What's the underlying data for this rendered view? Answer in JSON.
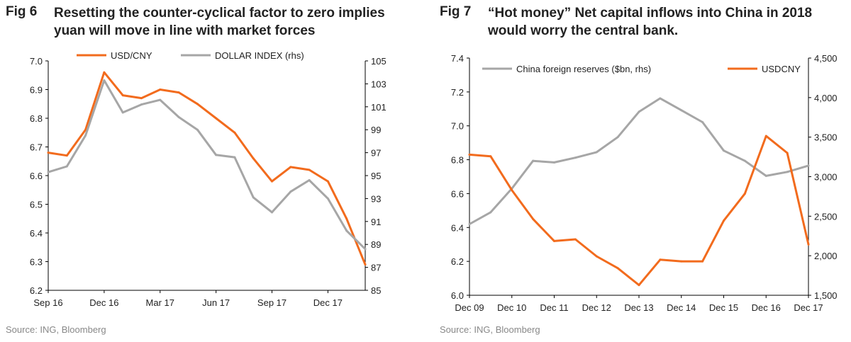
{
  "figures": [
    {
      "fig_label": "Fig 6",
      "title": "Resetting the counter-cyclical factor to zero implies yuan will move in line with market forces",
      "source": "Source: ING, Bloomberg"
    },
    {
      "fig_label": "Fig 7",
      "title": "“Hot money” Net capital inflows into China in 2018 would worry the central bank.",
      "source": "Source: ING, Bloomberg"
    }
  ],
  "colors": {
    "orange": "#f26b1d",
    "gray": "#a6a6a6",
    "axis": "#000000"
  },
  "chart_data": [
    {
      "type": "line",
      "title": "",
      "x": [
        "Sep 16",
        "Oct 16",
        "Nov 16",
        "Dec 16",
        "Jan 17",
        "Feb 17",
        "Mar 17",
        "Apr 17",
        "May 17",
        "Jun 17",
        "Jul 17",
        "Aug 17",
        "Sep 17",
        "Oct 17",
        "Nov 17",
        "Dec 17",
        "Jan 18",
        "Feb 18"
      ],
      "xticks": [
        "Sep 16",
        "Dec 16",
        "Mar 17",
        "Jun 17",
        "Sep 17",
        "Dec 17"
      ],
      "y_left": {
        "ylim": [
          6.2,
          7.0
        ],
        "ticks": [
          "6.2",
          "6.3",
          "6.4",
          "6.5",
          "6.6",
          "6.7",
          "6.8",
          "6.9",
          "7.0"
        ]
      },
      "y_right": {
        "ylim": [
          85,
          105
        ],
        "ticks": [
          "85",
          "87",
          "89",
          "91",
          "93",
          "95",
          "97",
          "99",
          "101",
          "103",
          "105"
        ]
      },
      "legend": {
        "placement": "top",
        "entries": [
          "USD/CNY",
          "DOLLAR INDEX (rhs)"
        ]
      },
      "series": [
        {
          "name": "USD/CNY",
          "axis": "left",
          "color": "#f26b1d",
          "values": [
            6.68,
            6.67,
            6.76,
            6.96,
            6.88,
            6.87,
            6.9,
            6.89,
            6.85,
            6.8,
            6.75,
            6.66,
            6.58,
            6.63,
            6.62,
            6.58,
            6.45,
            6.29
          ]
        },
        {
          "name": "DOLLAR INDEX (rhs)",
          "axis": "right",
          "color": "#a6a6a6",
          "values": [
            95.3,
            95.8,
            98.5,
            103.3,
            100.5,
            101.2,
            101.6,
            100.1,
            99.0,
            96.8,
            96.6,
            93.1,
            91.8,
            93.6,
            94.6,
            93.0,
            90.2,
            88.6
          ]
        }
      ],
      "grid": false
    },
    {
      "type": "line",
      "title": "",
      "x": [
        "Dec 09",
        "Jun 10",
        "Dec 10",
        "Jun 11",
        "Dec 11",
        "Jun 12",
        "Dec 12",
        "Jun 13",
        "Dec 13",
        "Jun 14",
        "Dec 14",
        "Jun 15",
        "Dec 15",
        "Jun 16",
        "Dec 16",
        "Jun 17",
        "Dec 17"
      ],
      "xticks": [
        "Dec 09",
        "Dec 10",
        "Dec 11",
        "Dec 12",
        "Dec 13",
        "Dec 14",
        "Dec 15",
        "Dec 16",
        "Dec 17"
      ],
      "y_left": {
        "ylim": [
          6.0,
          7.4
        ],
        "ticks": [
          "6.0",
          "6.2",
          "6.4",
          "6.6",
          "6.8",
          "7.0",
          "7.2",
          "7.4"
        ]
      },
      "y_right": {
        "ylim": [
          1500,
          4500
        ],
        "ticks": [
          "1,500",
          "2,000",
          "2,500",
          "3,000",
          "3,500",
          "4,000",
          "4,500"
        ]
      },
      "legend": {
        "placement": "top",
        "entries": [
          "China foreign reserves ($bn, rhs)",
          "USDCNY"
        ]
      },
      "series": [
        {
          "name": "China foreign reserves ($bn, rhs)",
          "axis": "right",
          "color": "#a6a6a6",
          "values": [
            2400,
            2550,
            2850,
            3200,
            3180,
            3240,
            3310,
            3500,
            3820,
            3990,
            3840,
            3690,
            3330,
            3200,
            3010,
            3060,
            3140
          ]
        },
        {
          "name": "USDCNY",
          "axis": "left",
          "color": "#f26b1d",
          "values": [
            6.83,
            6.82,
            6.62,
            6.45,
            6.32,
            6.33,
            6.23,
            6.16,
            6.06,
            6.21,
            6.2,
            6.2,
            6.44,
            6.6,
            6.94,
            6.84,
            6.3
          ]
        }
      ],
      "grid": false
    }
  ]
}
